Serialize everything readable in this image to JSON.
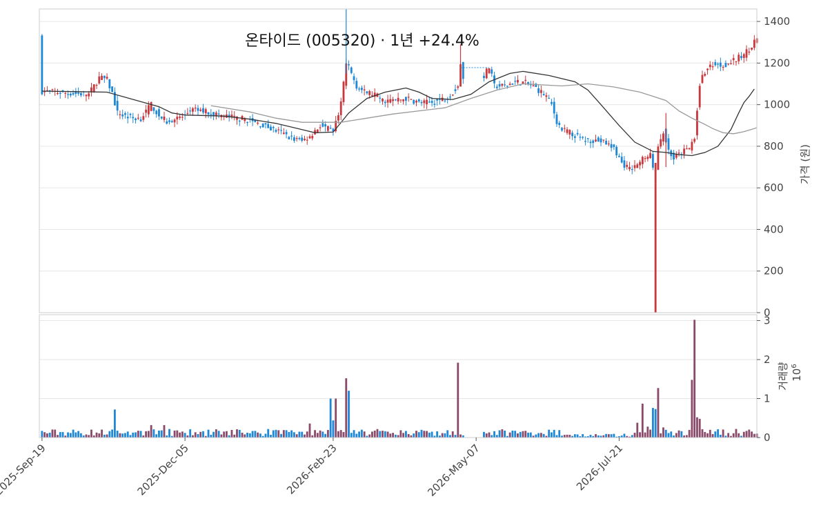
{
  "chart_data": {
    "type": "candlestick",
    "title": "온타이드 (005320)  ·  1년 +24.4%",
    "ylabel": "가격 (원)",
    "volume_label": "거래량",
    "volume_unit": "1e6",
    "ylim": [
      0,
      1460
    ],
    "volume_ylim": [
      0,
      3.15
    ],
    "yticks": [
      0,
      200,
      400,
      600,
      800,
      1000,
      1200,
      1400
    ],
    "volume_yticks": [
      0,
      1,
      2,
      3
    ],
    "xticks": [
      "2025-Sep-19",
      "2025-Dec-05",
      "2026-Feb-23",
      "2026-May-07",
      "2026-Jul-21"
    ],
    "xtick_index": [
      0,
      55,
      112,
      167,
      222
    ],
    "colors": {
      "up": "#c8383d",
      "down": "#1e88d6",
      "up_volume": "#8a4a6a",
      "ma_short": "#333333",
      "ma_long": "#999999"
    },
    "series": [
      {
        "name": "",
        "description": "short moving average",
        "points": [
          [
            0,
            1065
          ],
          [
            25,
            1060
          ],
          [
            45,
            990
          ],
          [
            50,
            960
          ],
          [
            55,
            950
          ],
          [
            70,
            945
          ],
          [
            80,
            930
          ],
          [
            90,
            910
          ],
          [
            100,
            880
          ],
          [
            105,
            865
          ],
          [
            112,
            868
          ],
          [
            118,
            960
          ],
          [
            125,
            1030
          ],
          [
            132,
            1060
          ],
          [
            140,
            1080
          ],
          [
            145,
            1060
          ],
          [
            150,
            1030
          ],
          [
            158,
            1025
          ],
          [
            165,
            1050
          ],
          [
            172,
            1110
          ],
          [
            180,
            1150
          ],
          [
            185,
            1160
          ],
          [
            195,
            1140
          ],
          [
            205,
            1110
          ],
          [
            210,
            1070
          ],
          [
            215,
            1000
          ],
          [
            222,
            900
          ],
          [
            228,
            820
          ],
          [
            235,
            775
          ],
          [
            240,
            770
          ],
          [
            245,
            760
          ],
          [
            250,
            755
          ],
          [
            255,
            770
          ],
          [
            260,
            800
          ],
          [
            265,
            880
          ],
          [
            268,
            960
          ],
          [
            270,
            1010
          ],
          [
            272,
            1040
          ],
          [
            274,
            1075
          ]
        ]
      },
      {
        "name": "",
        "description": "long moving average",
        "points": [
          [
            65,
            995
          ],
          [
            80,
            965
          ],
          [
            90,
            935
          ],
          [
            100,
            915
          ],
          [
            115,
            915
          ],
          [
            125,
            935
          ],
          [
            135,
            955
          ],
          [
            155,
            985
          ],
          [
            165,
            1030
          ],
          [
            175,
            1070
          ],
          [
            185,
            1100
          ],
          [
            200,
            1090
          ],
          [
            210,
            1100
          ],
          [
            220,
            1085
          ],
          [
            230,
            1060
          ],
          [
            240,
            1020
          ],
          [
            245,
            970
          ],
          [
            250,
            935
          ],
          [
            255,
            905
          ],
          [
            258,
            885
          ],
          [
            262,
            865
          ],
          [
            266,
            860
          ],
          [
            270,
            870
          ],
          [
            274,
            885
          ],
          [
            275,
            890
          ]
        ]
      }
    ],
    "annotations": [
      {
        "type": "dashed-line",
        "y": 1178,
        "x_start_index": 161,
        "x_end_index": 172
      }
    ]
  }
}
